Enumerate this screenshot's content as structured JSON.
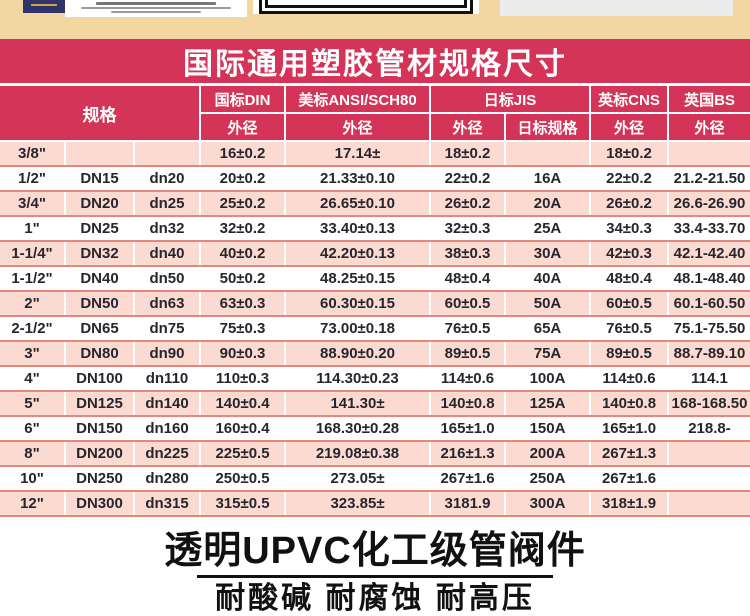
{
  "banner": {
    "title": "国际通用塑胶管材规格尺寸"
  },
  "table": {
    "spec_label": "规格",
    "col_groups": [
      {
        "label": "国标DIN",
        "subs": [
          "外径"
        ]
      },
      {
        "label": "美标ANSI/SCH80",
        "subs": [
          "外径"
        ]
      },
      {
        "label": "日标JIS",
        "subs": [
          "外径",
          "日标规格"
        ]
      },
      {
        "label": "英标CNS",
        "subs": [
          "外径"
        ]
      },
      {
        "label": "英国BS",
        "subs": [
          "外径"
        ]
      }
    ],
    "rows": [
      [
        "3/8\"",
        "",
        "",
        "16±0.2",
        "17.14±",
        "18±0.2",
        "",
        "18±0.2",
        ""
      ],
      [
        "1/2\"",
        "DN15",
        "dn20",
        "20±0.2",
        "21.33±0.10",
        "22±0.2",
        "16A",
        "22±0.2",
        "21.2-21.50"
      ],
      [
        "3/4\"",
        "DN20",
        "dn25",
        "25±0.2",
        "26.65±0.10",
        "26±0.2",
        "20A",
        "26±0.2",
        "26.6-26.90"
      ],
      [
        "1\"",
        "DN25",
        "dn32",
        "32±0.2",
        "33.40±0.13",
        "32±0.3",
        "25A",
        "34±0.3",
        "33.4-33.70"
      ],
      [
        "1-1/4\"",
        "DN32",
        "dn40",
        "40±0.2",
        "42.20±0.13",
        "38±0.3",
        "30A",
        "42±0.3",
        "42.1-42.40"
      ],
      [
        "1-1/2\"",
        "DN40",
        "dn50",
        "50±0.2",
        "48.25±0.15",
        "48±0.4",
        "40A",
        "48±0.4",
        "48.1-48.40"
      ],
      [
        "2\"",
        "DN50",
        "dn63",
        "63±0.3",
        "60.30±0.15",
        "60±0.5",
        "50A",
        "60±0.5",
        "60.1-60.50"
      ],
      [
        "2-1/2\"",
        "DN65",
        "dn75",
        "75±0.3",
        "73.00±0.18",
        "76±0.5",
        "65A",
        "76±0.5",
        "75.1-75.50"
      ],
      [
        "3\"",
        "DN80",
        "dn90",
        "90±0.3",
        "88.90±0.20",
        "89±0.5",
        "75A",
        "89±0.5",
        "88.7-89.10"
      ],
      [
        "4\"",
        "DN100",
        "dn110",
        "110±0.3",
        "114.30±0.23",
        "114±0.6",
        "100A",
        "114±0.6",
        "114.1"
      ],
      [
        "5\"",
        "DN125",
        "dn140",
        "140±0.4",
        "141.30±",
        "140±0.8",
        "125A",
        "140±0.8",
        "168-168.50"
      ],
      [
        "6\"",
        "DN150",
        "dn160",
        "160±0.4",
        "168.30±0.28",
        "165±1.0",
        "150A",
        "165±1.0",
        "218.8-"
      ],
      [
        "8\"",
        "DN200",
        "dn225",
        "225±0.5",
        "219.08±0.38",
        "216±1.3",
        "200A",
        "267±1.3",
        ""
      ],
      [
        "10\"",
        "DN250",
        "dn280",
        "250±0.5",
        "273.05±",
        "267±1.6",
        "250A",
        "267±1.6",
        ""
      ],
      [
        "12\"",
        "DN300",
        "dn315",
        "315±0.5",
        "323.85±",
        "3181.9",
        "300A",
        "318±1.9",
        ""
      ]
    ]
  },
  "footer": {
    "title": "透明UPVC化工级管阀件",
    "subtitle": "耐酸碱 耐腐蚀 耐高压"
  },
  "colors": {
    "accent": "#d33458",
    "row_pink": "#fbdbd1",
    "row_border": "#e0897f",
    "top_background": "#f2d7a2",
    "text": "#26262e"
  }
}
